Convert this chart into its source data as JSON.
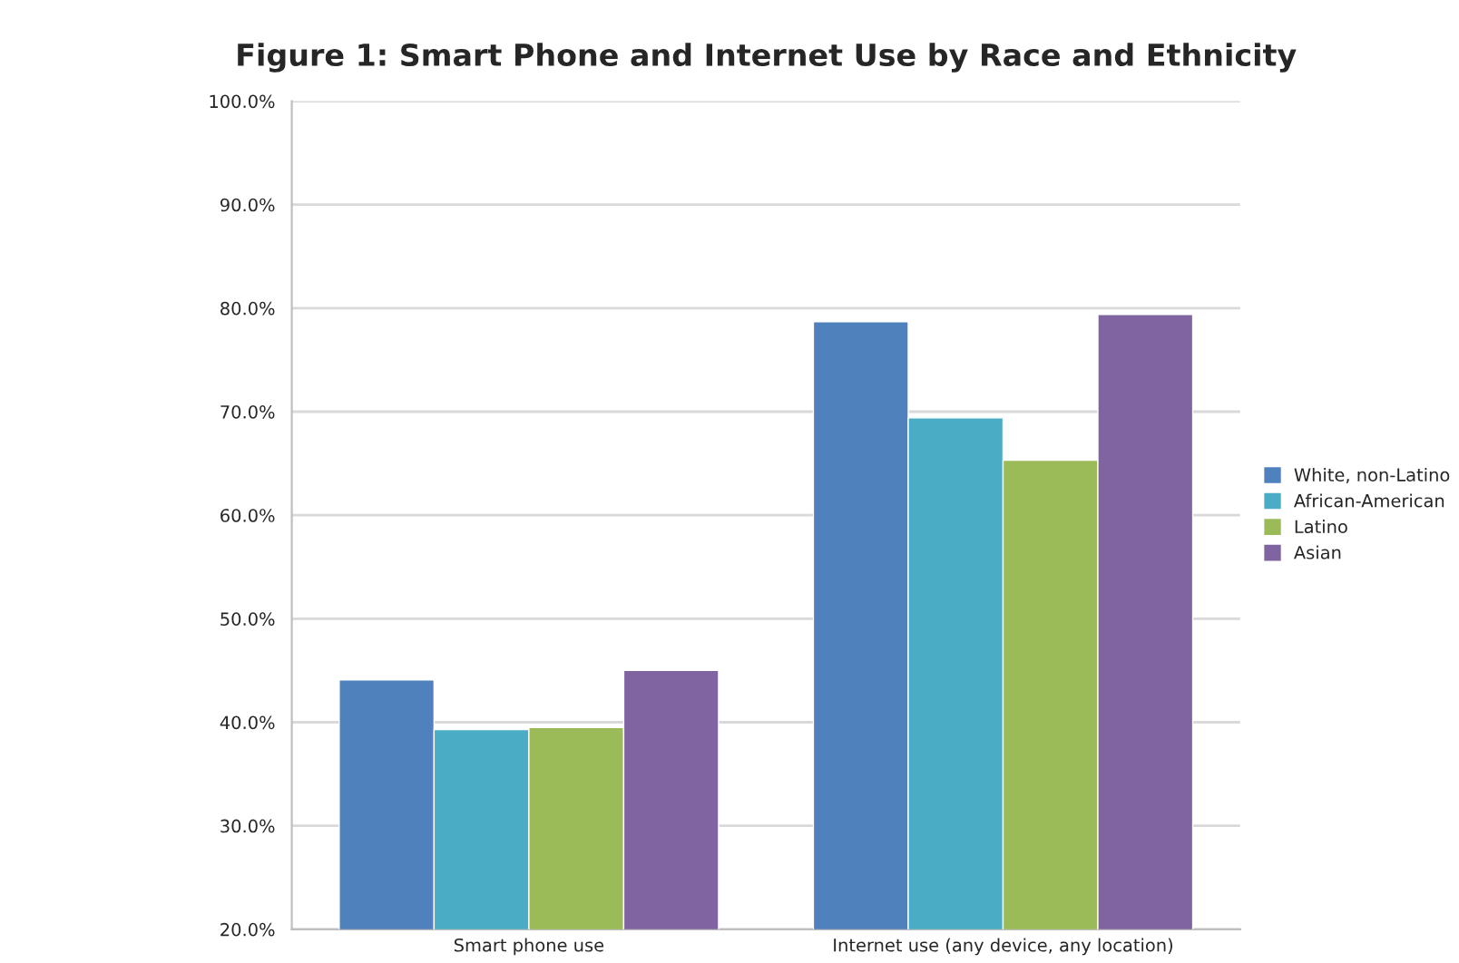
{
  "chart_data": {
    "type": "bar",
    "title": "Figure 1: Smart Phone and Internet Use by Race and Ethnicity",
    "categories": [
      "Smart phone use",
      "Internet use (any device, any location)"
    ],
    "series": [
      {
        "name": "White, non-Latino",
        "color": "#4f81bd",
        "values": [
          44.1,
          78.7
        ]
      },
      {
        "name": "African-American",
        "color": "#4bacc6",
        "values": [
          39.3,
          69.4
        ]
      },
      {
        "name": "Latino",
        "color": "#9bbb59",
        "values": [
          39.5,
          65.3
        ]
      },
      {
        "name": "Asian",
        "color": "#8064a2",
        "values": [
          45.0,
          79.4
        ]
      }
    ],
    "ylim": [
      20,
      100
    ],
    "yticks": [
      {
        "value": 20,
        "label": "20.0%"
      },
      {
        "value": 30,
        "label": "30.0%"
      },
      {
        "value": 40,
        "label": "40.0%"
      },
      {
        "value": 50,
        "label": "50.0%"
      },
      {
        "value": 60,
        "label": "60.0%"
      },
      {
        "value": 70,
        "label": "70.0%"
      },
      {
        "value": 80,
        "label": "80.0%"
      },
      {
        "value": 90,
        "label": "90.0%"
      },
      {
        "value": 100,
        "label": "100.0%"
      }
    ],
    "grid": "y",
    "legend": "right"
  }
}
